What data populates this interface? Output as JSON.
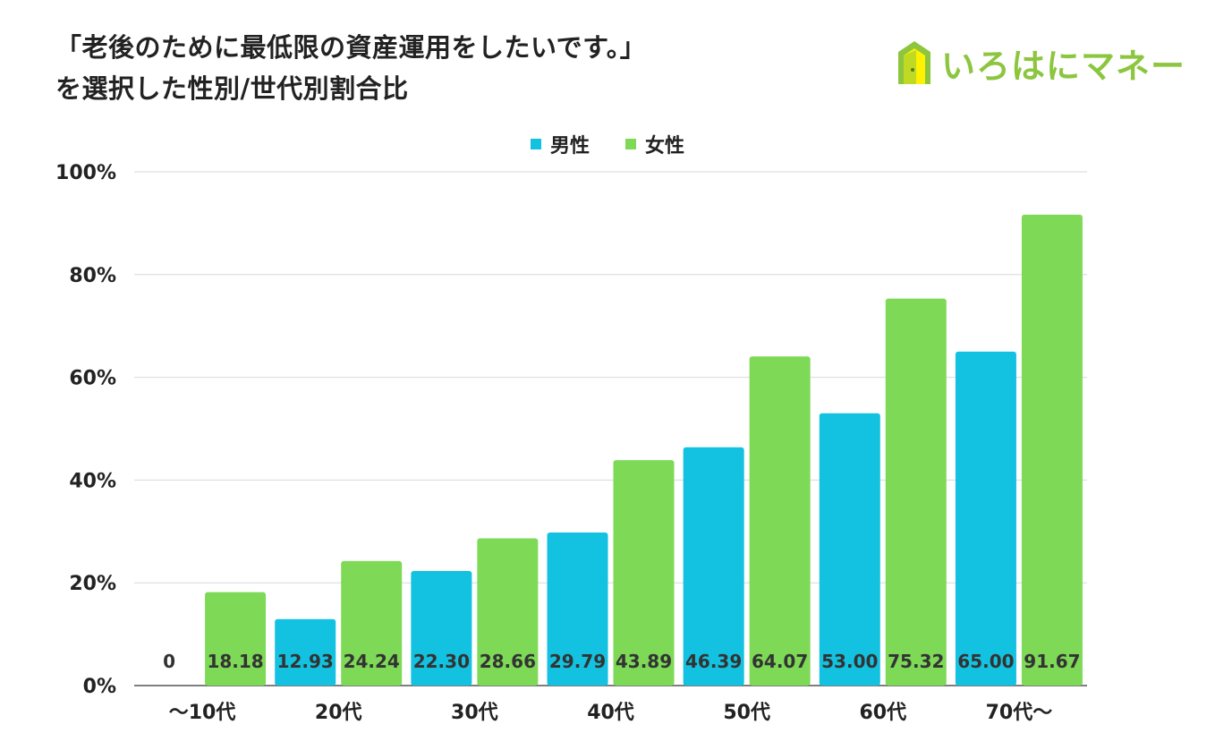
{
  "title": {
    "line1": "「老後のために最低限の資産運用をしたいです。」",
    "line2": "を選択した性別/世代別割合比"
  },
  "logo": {
    "text": "いろはにマネー",
    "icon": "house-icon",
    "color": "#8cc63f"
  },
  "legend": [
    {
      "name": "男性",
      "color": "#12c2e0"
    },
    {
      "name": "女性",
      "color": "#7ed957"
    }
  ],
  "chart_data": {
    "type": "bar",
    "title": "「老後のために最低限の資産運用をしたいです。」を選択した性別/世代別割合比",
    "categories": [
      "～10代",
      "20代",
      "30代",
      "40代",
      "50代",
      "60代",
      "70代～"
    ],
    "series": [
      {
        "name": "男性",
        "color": "#12c2e0",
        "values": [
          0,
          12.93,
          22.3,
          29.79,
          46.39,
          53.0,
          65.0
        ],
        "labels": [
          "0",
          "12.93",
          "22.30",
          "29.79",
          "46.39",
          "53.00",
          "65.00"
        ]
      },
      {
        "name": "女性",
        "color": "#7ed957",
        "values": [
          18.18,
          24.24,
          28.66,
          43.89,
          64.07,
          75.32,
          91.67
        ],
        "labels": [
          "18.18",
          "24.24",
          "28.66",
          "43.89",
          "64.07",
          "75.32",
          "91.67"
        ]
      }
    ],
    "yticks": [
      "0%",
      "20%",
      "40%",
      "60%",
      "80%",
      "100%"
    ],
    "ylim": [
      0,
      100
    ],
    "grid": true,
    "legend_position": "top"
  }
}
